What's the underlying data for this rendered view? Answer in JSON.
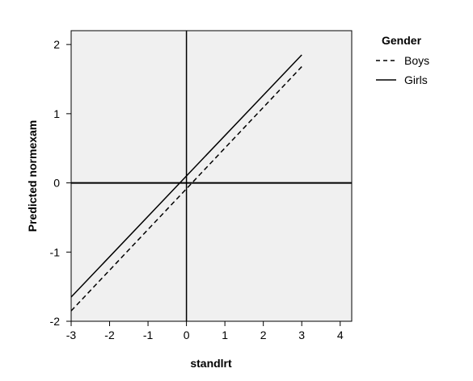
{
  "chart_data": {
    "type": "line",
    "title": "",
    "xlabel": "standlrt",
    "ylabel": "Predicted normexam",
    "xlim": [
      -3,
      4.3
    ],
    "ylim": [
      -2,
      2.2
    ],
    "x_ticks": [
      "-3",
      "-2",
      "-1",
      "0",
      "1",
      "2",
      "3",
      "4"
    ],
    "y_ticks": [
      "2",
      "1",
      "0",
      "-1",
      "-2"
    ],
    "grid": false,
    "reference_lines": {
      "x": 0,
      "y": 0
    },
    "legend": {
      "title": "Gender",
      "position": "right"
    },
    "series": [
      {
        "name": "Boys",
        "style": "dashed",
        "x": [
          -3,
          3
        ],
        "y": [
          -1.85,
          1.68
        ]
      },
      {
        "name": "Girls",
        "style": "solid",
        "x": [
          -3,
          3
        ],
        "y": [
          -1.65,
          1.85
        ]
      }
    ],
    "colors": {
      "plot_background": "#f0f0f0",
      "line": "#000000"
    }
  }
}
